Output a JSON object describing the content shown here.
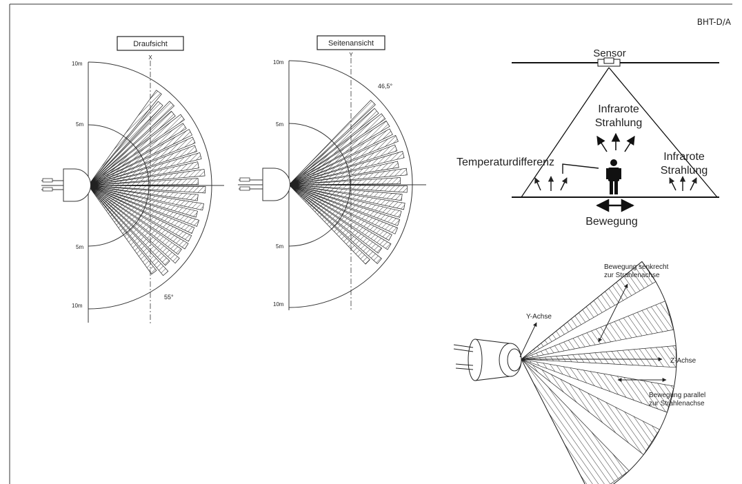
{
  "document": {
    "code": "BHT-D/A"
  },
  "top_view": {
    "title": "Draufsicht",
    "axis_label": "X",
    "scale_labels": [
      "10m",
      "5m",
      "5m",
      "10m"
    ],
    "angle_label": "55°"
  },
  "side_view": {
    "title": "Seitenansicht",
    "axis_label": "Y",
    "scale_labels": [
      "10m",
      "5m",
      "5m",
      "10m"
    ],
    "angle_label": "46,5°"
  },
  "principle": {
    "sensor_label": "Sensor",
    "ir_center_line1": "Infrarote",
    "ir_center_line2": "Strahlung",
    "ir_right_line1": "Infrarote",
    "ir_right_line2": "Strahlung",
    "temp_label": "Temperaturdifferenz",
    "movement_label": "Bewegung"
  },
  "lens_3d": {
    "y_axis_label": "Y-Achse",
    "z_axis_label": "Z-Achse",
    "perp_line1": "Bewegung senkrecht",
    "perp_line2": "zur Strahlenachse",
    "par_line1": "Bewegung parallel",
    "par_line2": "zur Strahlenachse"
  }
}
